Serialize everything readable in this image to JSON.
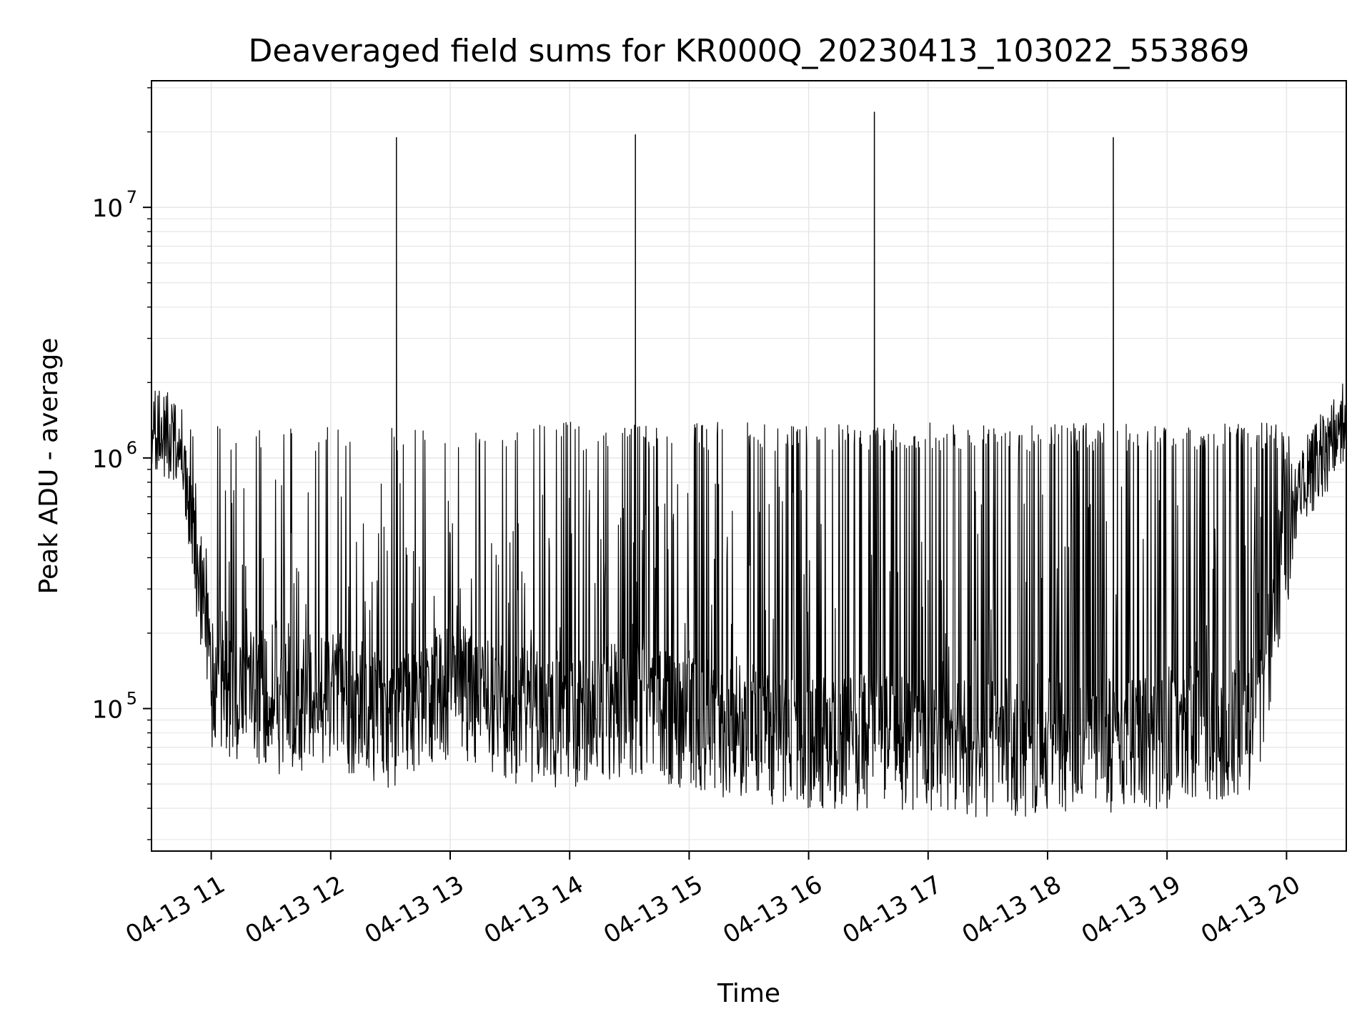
{
  "chart_data": {
    "type": "line",
    "title": "Deaveraged field sums for KR000Q_20230413_103022_553869",
    "xlabel": "Time",
    "ylabel": "Peak ADU - average",
    "x_scale": "time",
    "y_scale": "log",
    "xlim": [
      "2023-04-13 10:30",
      "2023-04-13 20:30"
    ],
    "ylim": [
      27000,
      32000000
    ],
    "x_ticks": [
      "04-13 11",
      "04-13 12",
      "04-13 13",
      "04-13 14",
      "04-13 15",
      "04-13 16",
      "04-13 17",
      "04-13 18",
      "04-13 19",
      "04-13 20"
    ],
    "y_ticks": [
      {
        "value": 100000,
        "base": "10",
        "exp": "5"
      },
      {
        "value": 1000000,
        "base": "10",
        "exp": "6"
      },
      {
        "value": 10000000,
        "base": "10",
        "exp": "7"
      }
    ],
    "grid": true,
    "line_color": "#000000",
    "grid_color": "#e6e6e6",
    "series": [
      {
        "baseline_profile": {
          "x": [
            "2023-04-13 10:30",
            "2023-04-13 10:45",
            "2023-04-13 11:00",
            "2023-04-13 11:30",
            "2023-04-13 12:00",
            "2023-04-13 12:30",
            "2023-04-13 13:00",
            "2023-04-13 13:30",
            "2023-04-13 14:00",
            "2023-04-13 14:30",
            "2023-04-13 15:00",
            "2023-04-13 16:00",
            "2023-04-13 17:00",
            "2023-04-13 18:00",
            "2023-04-13 19:00",
            "2023-04-13 19:45",
            "2023-04-13 20:05",
            "2023-04-13 20:30"
          ],
          "y": [
            1500000,
            1200000,
            130000,
            100000,
            110000,
            90000,
            120000,
            95000,
            90000,
            100000,
            85000,
            75000,
            70000,
            70000,
            75000,
            85000,
            800000,
            1500000
          ]
        },
        "burst_peak": 1400000,
        "spikes": [
          {
            "x": "2023-04-13 12:33",
            "y": 19000000
          },
          {
            "x": "2023-04-13 14:33",
            "y": 19500000
          },
          {
            "x": "2023-04-13 16:33",
            "y": 24000000
          },
          {
            "x": "2023-04-13 18:33",
            "y": 19000000
          }
        ],
        "minimum": {
          "x": "2023-04-13 17:24",
          "y": 37000
        }
      }
    ]
  }
}
